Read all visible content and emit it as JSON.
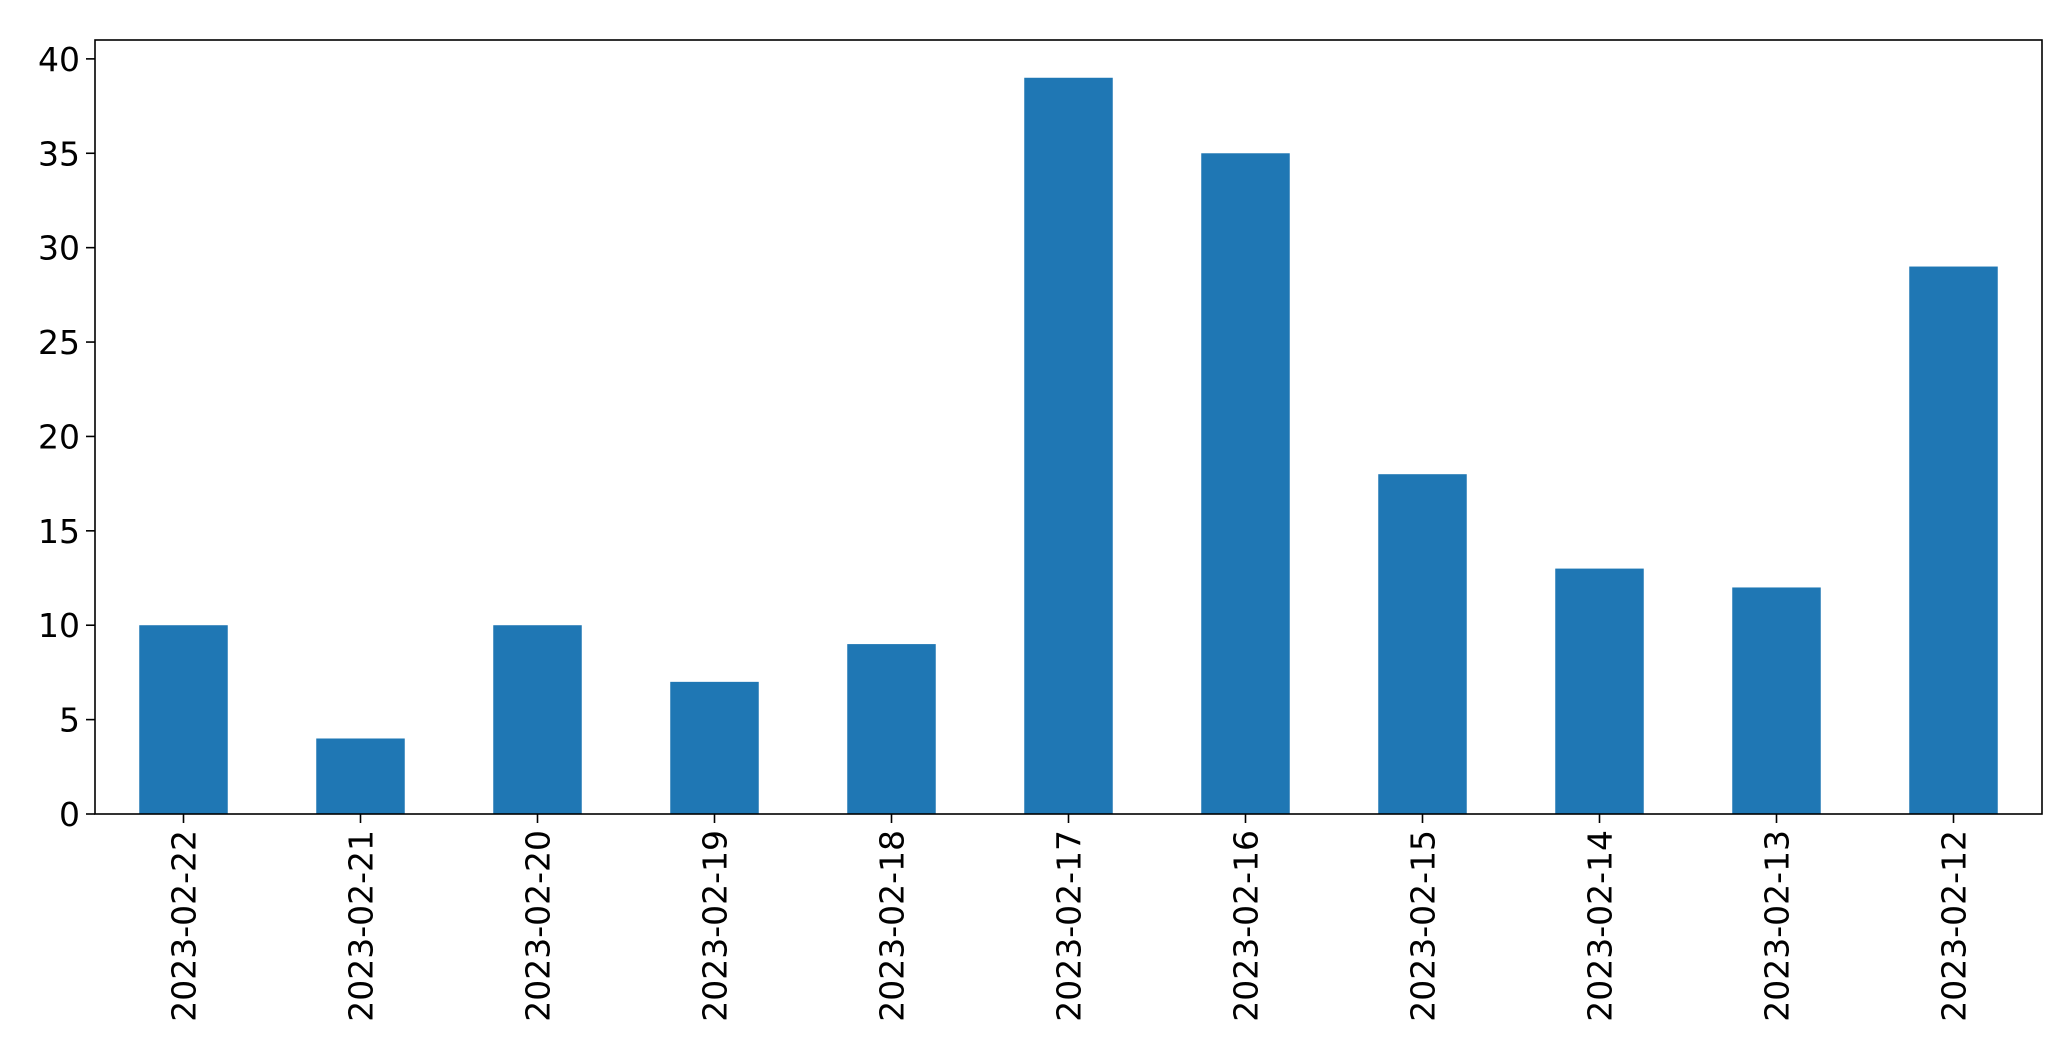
{
  "chart_data": {
    "type": "bar",
    "categories": [
      "2023-02-22",
      "2023-02-21",
      "2023-02-20",
      "2023-02-19",
      "2023-02-18",
      "2023-02-17",
      "2023-02-16",
      "2023-02-15",
      "2023-02-14",
      "2023-02-13",
      "2023-02-12"
    ],
    "values": [
      10,
      4,
      10,
      7,
      9,
      39,
      35,
      18,
      13,
      12,
      29
    ],
    "ylim": [
      0,
      41
    ],
    "yticks": [
      0,
      5,
      10,
      15,
      20,
      25,
      30,
      35,
      40
    ],
    "grid": false,
    "legend": "none",
    "bar_color": "#1f77b4"
  }
}
